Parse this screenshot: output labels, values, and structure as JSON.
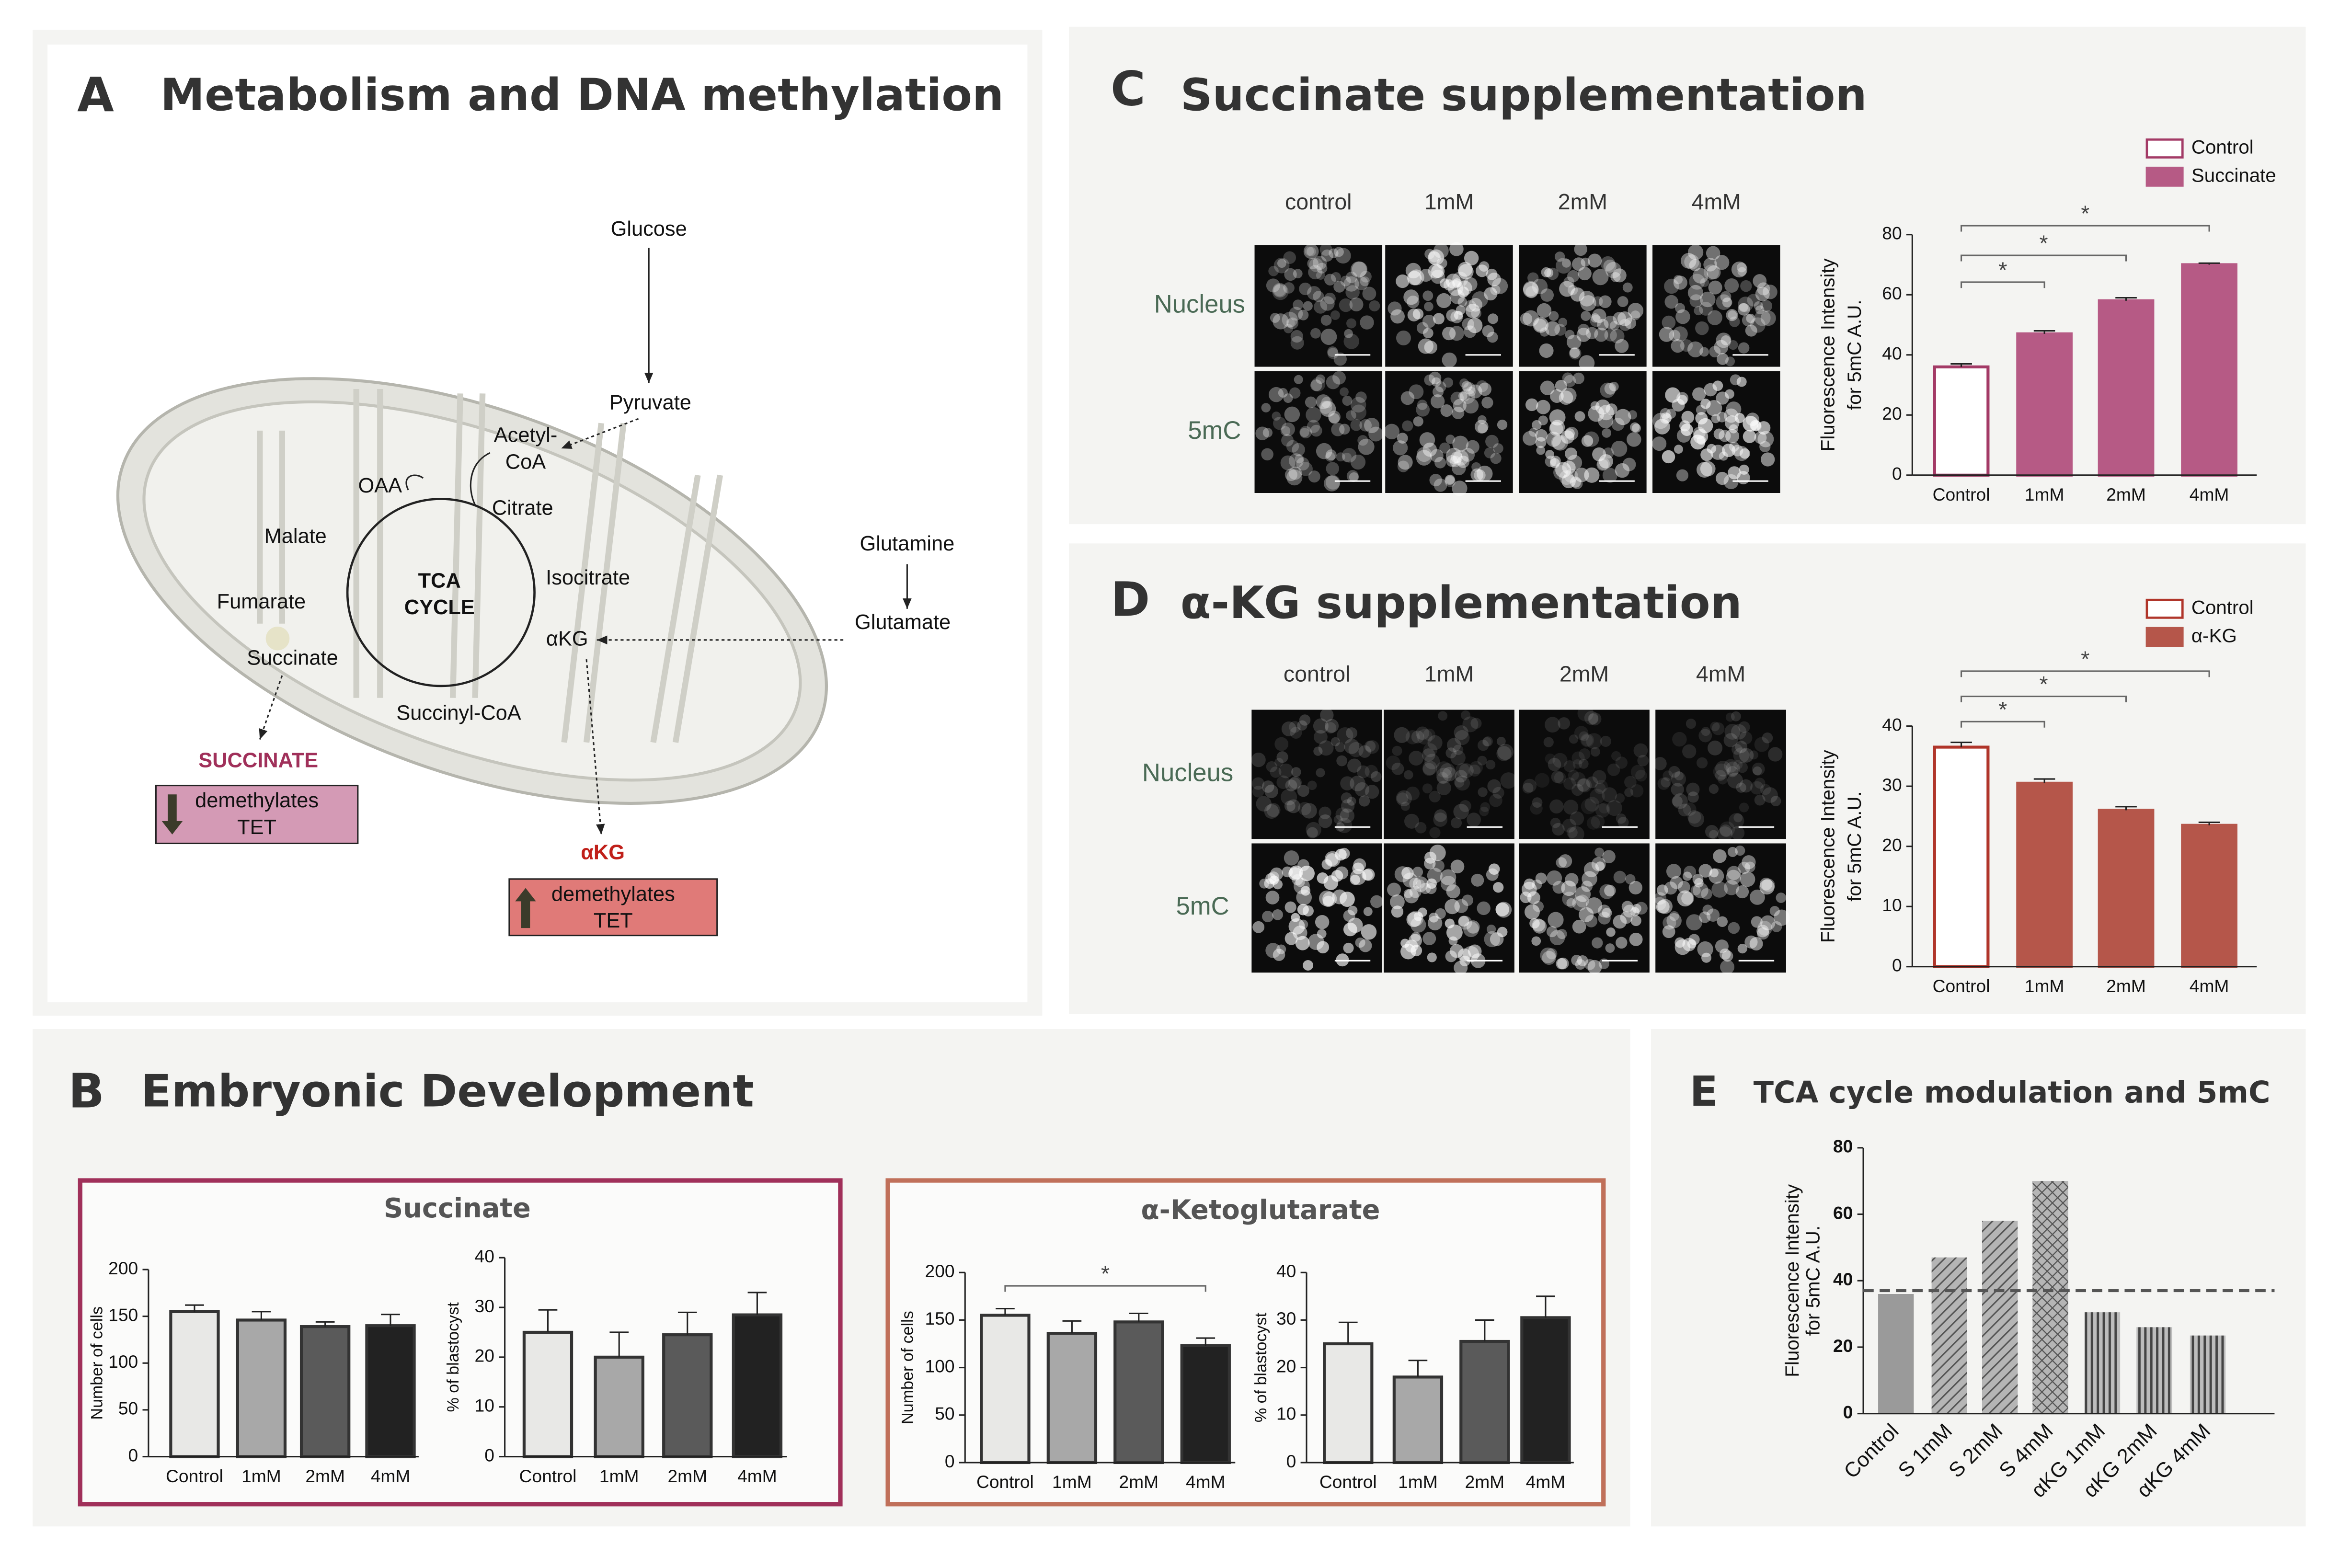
{
  "panels": {
    "A": {
      "letter": "A",
      "title": "Metabolism and DNA methylation",
      "labels": {
        "glucose": "Glucose",
        "pyruvate": "Pyruvate",
        "acetyl_coa": [
          "Acetyl-",
          "CoA"
        ],
        "oaa": "OAA",
        "citrate": "Citrate",
        "malate": "Malate",
        "tca": [
          "TCA",
          "CYCLE"
        ],
        "isocitrate": "Isocitrate",
        "glutamine": "Glutamine",
        "fumarate": "Fumarate",
        "glutamate": "Glutamate",
        "akg": "αKG",
        "succinate": "Succinate",
        "succinyl_coa": "Succinyl-CoA",
        "succinate_box": {
          "title": "SUCCINATE",
          "text": [
            "demethylates",
            "TET"
          ]
        },
        "akg_box": {
          "title": "αKG",
          "text": [
            "demethylates",
            "TET"
          ]
        }
      }
    },
    "B": {
      "letter": "B",
      "title": "Embryonic Development",
      "groups": [
        "Succinate",
        "α-Ketoglutarate"
      ]
    },
    "C": {
      "letter": "C",
      "title": "Succinate supplementation",
      "columns": [
        "control",
        "1mM",
        "2mM",
        "4mM"
      ],
      "rows": [
        "Nucleus",
        "5mC"
      ]
    },
    "D": {
      "letter": "D",
      "title": "α-KG supplementation",
      "columns": [
        "control",
        "1mM",
        "2mM",
        "4mM"
      ],
      "rows": [
        "Nucleus",
        "5mC"
      ]
    },
    "E": {
      "letter": "E",
      "title": "TCA cycle modulation and 5mC"
    }
  },
  "chart_data": [
    {
      "type": "bar",
      "categories": [
        "Control",
        "1mM",
        "2mM",
        "4mM"
      ],
      "series": [
        {
          "name": "Control",
          "color": "#a33a66",
          "fill": "#ffffff",
          "values": [
            36,
            null,
            null,
            null
          ],
          "errors": [
            1,
            null,
            null,
            null
          ]
        },
        {
          "name": "Succinate",
          "color": "#b65a85",
          "values": [
            null,
            47,
            58,
            70
          ],
          "errors": [
            null,
            1,
            1,
            0.5
          ]
        }
      ],
      "ylabel": [
        "Fluorescence Intensity",
        "for 5mC A.U."
      ],
      "ylim": [
        0,
        80
      ],
      "yticks": [
        0,
        20,
        40,
        60,
        80
      ],
      "significance": [
        "*",
        "*",
        "*"
      ],
      "legend": "top-right"
    },
    {
      "type": "bar",
      "categories": [
        "Control",
        "1mM",
        "2mM",
        "4mM"
      ],
      "series": [
        {
          "name": "Control",
          "color": "#b0352a",
          "fill": "#ffffff",
          "values": [
            36.5,
            null,
            null,
            null
          ],
          "errors": [
            0.8,
            null,
            null,
            null
          ]
        },
        {
          "name": "α-KG",
          "color": "#b5564a",
          "values": [
            null,
            30.5,
            26,
            23.5
          ],
          "errors": [
            null,
            0.7,
            0.6,
            0.5
          ]
        }
      ],
      "ylabel": [
        "Fluorescence Intensity",
        "for 5mC A.U."
      ],
      "ylim": [
        0,
        40
      ],
      "yticks": [
        0,
        10,
        20,
        30,
        40
      ],
      "significance": [
        "*",
        "*",
        "*"
      ],
      "legend": "top-right"
    },
    {
      "type": "bar",
      "categories": [
        "Control",
        "1mM",
        "2mM",
        "4mM"
      ],
      "values": [
        155,
        146,
        139,
        140
      ],
      "errors": [
        7,
        9,
        5,
        12
      ],
      "colors": [
        "#e8e8e6",
        "#a8a8a8",
        "#5a5a5a",
        "#222222"
      ],
      "ylabel": "Number of cells",
      "ylim": [
        0,
        200
      ],
      "yticks": [
        0,
        50,
        100,
        150,
        200
      ]
    },
    {
      "type": "bar",
      "categories": [
        "Control",
        "1mM",
        "2mM",
        "4mM"
      ],
      "values": [
        25,
        20,
        24.5,
        28.5
      ],
      "errors": [
        4.5,
        5,
        4.5,
        4.5
      ],
      "colors": [
        "#e8e8e6",
        "#a8a8a8",
        "#5a5a5a",
        "#222222"
      ],
      "ylabel": "% of blastocyst",
      "ylim": [
        0,
        40
      ],
      "yticks": [
        0,
        10,
        20,
        30,
        40
      ]
    },
    {
      "type": "bar",
      "categories": [
        "Control",
        "1mM",
        "2mM",
        "4mM"
      ],
      "values": [
        155,
        136,
        148,
        123
      ],
      "errors": [
        7,
        13,
        9,
        8
      ],
      "colors": [
        "#e8e8e6",
        "#a8a8a8",
        "#5a5a5a",
        "#222222"
      ],
      "ylabel": "Number of cells",
      "ylim": [
        0,
        200
      ],
      "yticks": [
        0,
        50,
        100,
        150,
        200
      ],
      "significance": [
        "*"
      ]
    },
    {
      "type": "bar",
      "categories": [
        "Control",
        "1mM",
        "2mM",
        "4mM"
      ],
      "values": [
        25,
        18,
        25.5,
        30.5
      ],
      "errors": [
        4.5,
        3.5,
        4.5,
        4.5
      ],
      "colors": [
        "#e8e8e6",
        "#a8a8a8",
        "#5a5a5a",
        "#222222"
      ],
      "ylabel": "% of blastocyst",
      "ylim": [
        0,
        40
      ],
      "yticks": [
        0,
        10,
        20,
        30,
        40
      ]
    },
    {
      "type": "bar",
      "categories": [
        "Control",
        "S 1mM",
        "S 2mM",
        "S 4mM",
        "αKG 1mM",
        "αKG 2mM",
        "αKG 4mM"
      ],
      "values": [
        36,
        47,
        58,
        70,
        30.5,
        26,
        23.5
      ],
      "patterns": [
        "solid",
        "diagonal",
        "diagonal",
        "crosshatch",
        "vertical",
        "vertical",
        "vertical"
      ],
      "ylabel": [
        "Fluorescence Intensity",
        "for 5mC A.U."
      ],
      "ylim": [
        0,
        80
      ],
      "yticks": [
        0,
        20,
        40,
        60,
        80
      ],
      "reference_line": 37,
      "reference_style": "dashed"
    }
  ]
}
